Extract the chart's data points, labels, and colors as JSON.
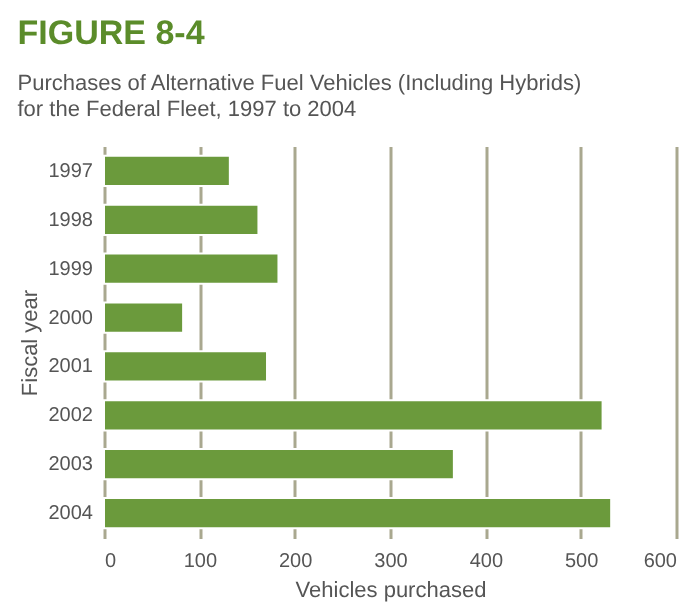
{
  "chart_data": {
    "type": "bar",
    "orientation": "horizontal",
    "title": "FIGURE 8-4",
    "subtitle": "Purchases of Alternative Fuel Vehicles (Including Hybrids)\nfor the Federal Fleet, 1997 to 2004",
    "categories": [
      "1997",
      "1998",
      "1999",
      "2000",
      "2001",
      "2002",
      "2003",
      "2004"
    ],
    "values": [
      132,
      162,
      183,
      83,
      171,
      523,
      367,
      532
    ],
    "color": "#6b9a3c",
    "xlim": [
      0,
      600
    ],
    "xticks": [
      0,
      100,
      200,
      300,
      400,
      500,
      600
    ],
    "xlabel": "Vehicles purchased",
    "ylabel": "Fiscal year",
    "grid": "x"
  }
}
